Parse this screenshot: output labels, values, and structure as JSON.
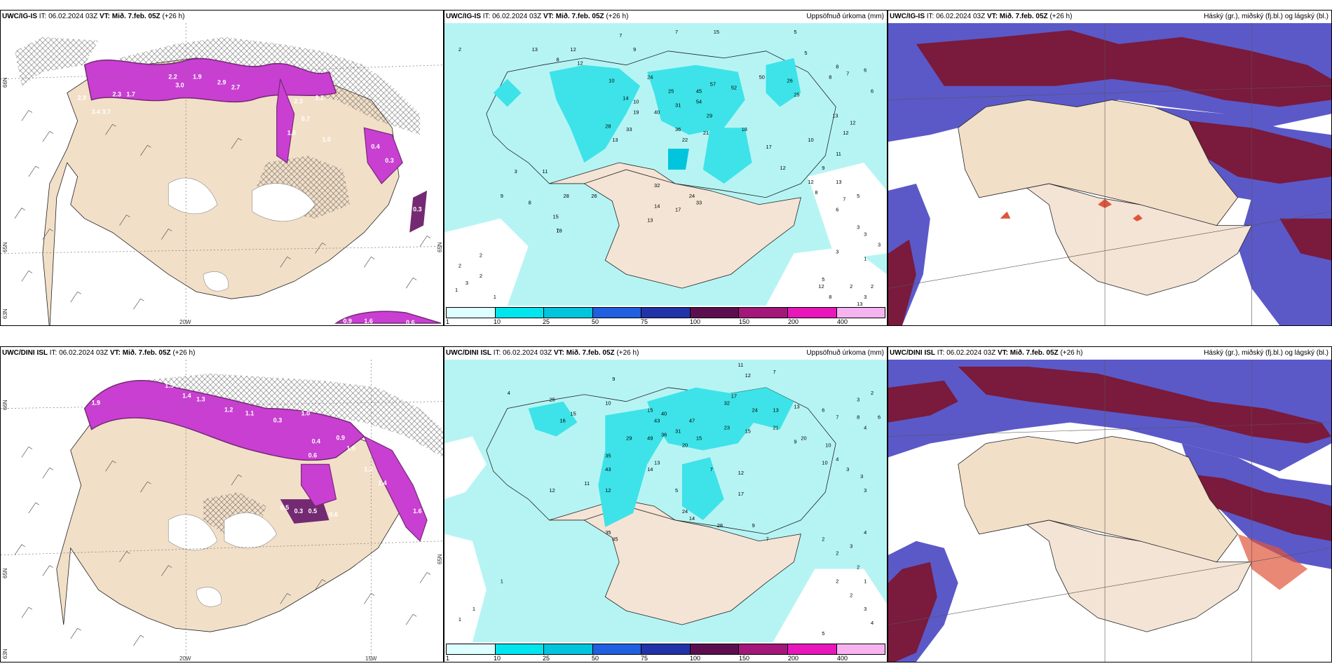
{
  "rows": [
    {
      "model": "UWC/IG-IS",
      "it_label": "IT:",
      "it_value": "06.02.2024 03Z",
      "vt_label": "VT:",
      "vt_value": "Mið. 7.feb. 05Z",
      "lead": "(+26 h)",
      "axis_labels": {
        "lat_top": "66N",
        "lat_mid": "65N",
        "lat_bot": "63N",
        "lon": "20W",
        "lon2": "",
        "lat_mid_right": "65N"
      },
      "precip_numbers": [
        "2",
        "13",
        "12",
        "12",
        "8",
        "7",
        "9",
        "13",
        "15",
        "5",
        "10",
        "24",
        "10",
        "25",
        "45",
        "57",
        "52",
        "50",
        "26",
        "25",
        "5",
        "8",
        "8",
        "7",
        "6",
        "6",
        "14",
        "19",
        "40",
        "31",
        "54",
        "29",
        "33",
        "13",
        "28",
        "21",
        "36",
        "22",
        "18",
        "17",
        "12",
        "13",
        "12",
        "11",
        "10",
        "9",
        "12",
        "13",
        "8",
        "5",
        "7",
        "6",
        "28",
        "26",
        "32",
        "33",
        "24",
        "17",
        "14",
        "13",
        "15",
        "18",
        "3",
        "11",
        "9",
        "8",
        "7",
        "2",
        "2",
        "3",
        "2",
        "1",
        "1",
        "1",
        "2",
        "3",
        "3",
        "3",
        "3",
        "5",
        "12",
        "2",
        "13",
        "3",
        "8"
      ],
      "wind_barbs": true
    },
    {
      "model": "UWC/DINI ISL",
      "it_label": "IT:",
      "it_value": "06.02.2024 03Z",
      "vt_label": "VT:",
      "vt_value": "Mið. 7.feb. 05Z",
      "lead": "(+26 h)",
      "axis_labels": {
        "lat_top": "66N",
        "lat_mid": "65N",
        "lat_bot": "63N",
        "lon": "20W",
        "lon2": "15W",
        "lat_mid_right": "65N"
      },
      "precip_numbers": [
        "11",
        "12",
        "7",
        "9",
        "4",
        "10",
        "25",
        "16",
        "15",
        "15",
        "40",
        "43",
        "47",
        "32",
        "17",
        "24",
        "13",
        "13",
        "6",
        "7",
        "8",
        "8",
        "4",
        "4",
        "6",
        "29",
        "49",
        "36",
        "31",
        "15",
        "23",
        "20",
        "15",
        "21",
        "3",
        "2",
        "9",
        "12",
        "20",
        "4",
        "10",
        "3",
        "3",
        "3",
        "35",
        "43",
        "14",
        "13",
        "7",
        "11",
        "12",
        "10",
        "5",
        "12",
        "17",
        "24",
        "14",
        "28",
        "35",
        "45",
        "9",
        "7",
        "2",
        "2",
        "3",
        "4",
        "1",
        "1",
        "1",
        "1",
        "5",
        "2",
        "2",
        "2",
        "3",
        "4"
      ],
      "wind_barbs": true
    }
  ],
  "precip_panel": {
    "title": "Uppsöfnuð úrkoma (mm)",
    "colorbar": {
      "ticks": [
        "1",
        "10",
        "25",
        "50",
        "75",
        "100",
        "150",
        "200",
        "400"
      ],
      "colors": [
        "#ddffff",
        "#00e5ee",
        "#00c5dd",
        "#1f5fe0",
        "#2233aa",
        "#5c0f4f",
        "#a3177a",
        "#e817b9",
        "#f6b3f0"
      ]
    }
  },
  "cloud_panel": {
    "title": "Háský (gr.), miðský (fj.bl.) og lágský (bl.)"
  },
  "colors": {
    "land": "#f2dfc8",
    "sea_precip": "#b6f4f4",
    "precip_mid": "#3de3e8",
    "snow_magenta": "#c93fd2",
    "snow_dark": "#742a73",
    "cloud_dark": "#7a1a3c",
    "cloud_mid": "#5b59c8",
    "cloud_low": "#3b4fe6"
  },
  "snow_numbers_top": [
    "2.2",
    "1.9",
    "3.0",
    "2.9",
    "2.7",
    "2.3",
    "1.7",
    "3.4",
    "2.2",
    "1.0",
    "0.7",
    "2.9",
    "3.7",
    "2.3",
    "1.0",
    "0.4",
    "0.3",
    "0.3",
    "0.3",
    "0.9",
    "1.6",
    "0.6"
  ],
  "snow_numbers_bottom": [
    "1.5",
    "1.4",
    "1.3",
    "1.2",
    "1.1",
    "0.4",
    "0.6",
    "1.0",
    "0.9",
    "0.3",
    "0.5",
    "0.3",
    "0.5",
    "0.6",
    "1.0",
    "1.9",
    "1.6",
    "0.9",
    "1.4",
    "1.2"
  ]
}
